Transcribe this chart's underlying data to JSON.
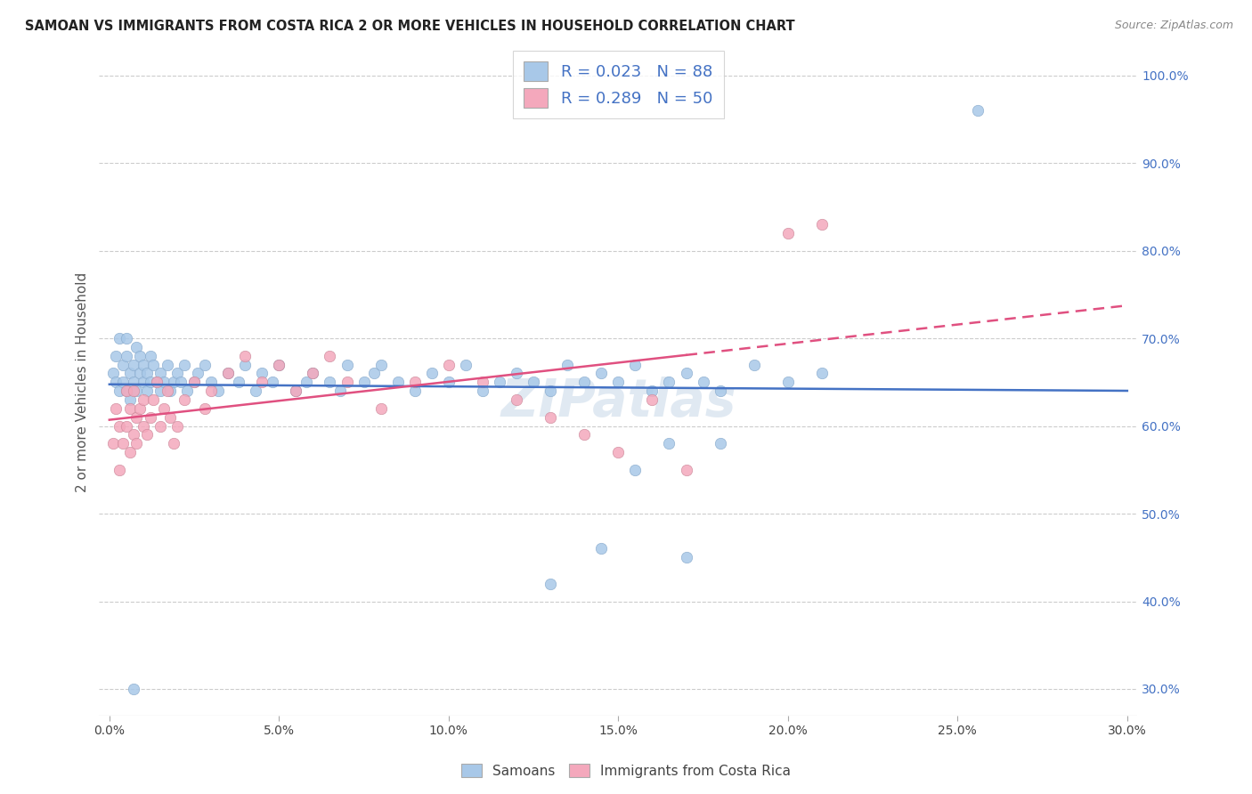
{
  "title": "SAMOAN VS IMMIGRANTS FROM COSTA RICA 2 OR MORE VEHICLES IN HOUSEHOLD CORRELATION CHART",
  "source": "Source: ZipAtlas.com",
  "ylabel": "2 or more Vehicles in Household",
  "legend_labels": [
    "Samoans",
    "Immigrants from Costa Rica"
  ],
  "R_samoans": 0.023,
  "N_samoans": 88,
  "R_costarica": 0.289,
  "N_costarica": 50,
  "samoans_color": "#a8c8e8",
  "costarica_color": "#f4a8bc",
  "samoans_line_color": "#4472c4",
  "costarica_line_color": "#e05080",
  "watermark": "ZIPatlas",
  "xlim": [
    0.0,
    0.3
  ],
  "ylim_low": 0.27,
  "ylim_high": 1.03,
  "ytick_vals": [
    0.3,
    0.4,
    0.5,
    0.6,
    0.7,
    0.8,
    0.9,
    1.0
  ],
  "ytick_labels": [
    "30.0%",
    "40.0%",
    "50.0%",
    "60.0%",
    "70.0%",
    "80.0%",
    "90.0%",
    "100.0%"
  ],
  "xtick_vals": [
    0.0,
    0.05,
    0.1,
    0.15,
    0.2,
    0.25,
    0.3
  ],
  "xtick_labels": [
    "0.0%",
    "5.0%",
    "10.0%",
    "15.0%",
    "20.0%",
    "25.0%",
    "30.0%"
  ],
  "samoans_x": [
    0.001,
    0.002,
    0.002,
    0.003,
    0.003,
    0.004,
    0.004,
    0.005,
    0.005,
    0.005,
    0.006,
    0.006,
    0.007,
    0.007,
    0.008,
    0.008,
    0.009,
    0.009,
    0.01,
    0.01,
    0.011,
    0.011,
    0.012,
    0.012,
    0.013,
    0.014,
    0.015,
    0.015,
    0.016,
    0.017,
    0.018,
    0.019,
    0.02,
    0.021,
    0.022,
    0.023,
    0.025,
    0.026,
    0.028,
    0.03,
    0.032,
    0.035,
    0.038,
    0.04,
    0.043,
    0.045,
    0.048,
    0.05,
    0.055,
    0.058,
    0.06,
    0.065,
    0.068,
    0.07,
    0.075,
    0.078,
    0.08,
    0.085,
    0.09,
    0.095,
    0.1,
    0.105,
    0.11,
    0.115,
    0.12,
    0.125,
    0.13,
    0.135,
    0.14,
    0.145,
    0.15,
    0.155,
    0.16,
    0.165,
    0.17,
    0.175,
    0.18,
    0.19,
    0.2,
    0.21,
    0.13,
    0.007,
    0.256,
    0.145,
    0.155,
    0.165,
    0.17,
    0.18
  ],
  "samoans_y": [
    0.66,
    0.68,
    0.65,
    0.7,
    0.64,
    0.67,
    0.65,
    0.68,
    0.7,
    0.64,
    0.66,
    0.63,
    0.67,
    0.65,
    0.69,
    0.64,
    0.66,
    0.68,
    0.65,
    0.67,
    0.64,
    0.66,
    0.65,
    0.68,
    0.67,
    0.65,
    0.64,
    0.66,
    0.65,
    0.67,
    0.64,
    0.65,
    0.66,
    0.65,
    0.67,
    0.64,
    0.65,
    0.66,
    0.67,
    0.65,
    0.64,
    0.66,
    0.65,
    0.67,
    0.64,
    0.66,
    0.65,
    0.67,
    0.64,
    0.65,
    0.66,
    0.65,
    0.64,
    0.67,
    0.65,
    0.66,
    0.67,
    0.65,
    0.64,
    0.66,
    0.65,
    0.67,
    0.64,
    0.65,
    0.66,
    0.65,
    0.64,
    0.67,
    0.65,
    0.66,
    0.65,
    0.67,
    0.64,
    0.65,
    0.66,
    0.65,
    0.64,
    0.67,
    0.65,
    0.66,
    0.42,
    0.3,
    0.96,
    0.46,
    0.55,
    0.58,
    0.45,
    0.58
  ],
  "costarica_x": [
    0.001,
    0.002,
    0.003,
    0.003,
    0.004,
    0.005,
    0.005,
    0.006,
    0.006,
    0.007,
    0.007,
    0.008,
    0.008,
    0.009,
    0.01,
    0.01,
    0.011,
    0.012,
    0.013,
    0.014,
    0.015,
    0.016,
    0.017,
    0.018,
    0.019,
    0.02,
    0.022,
    0.025,
    0.028,
    0.03,
    0.035,
    0.04,
    0.045,
    0.05,
    0.055,
    0.06,
    0.065,
    0.07,
    0.08,
    0.09,
    0.1,
    0.11,
    0.12,
    0.13,
    0.14,
    0.15,
    0.16,
    0.17,
    0.2,
    0.21
  ],
  "costarica_y": [
    0.58,
    0.62,
    0.55,
    0.6,
    0.58,
    0.6,
    0.64,
    0.57,
    0.62,
    0.59,
    0.64,
    0.61,
    0.58,
    0.62,
    0.6,
    0.63,
    0.59,
    0.61,
    0.63,
    0.65,
    0.6,
    0.62,
    0.64,
    0.61,
    0.58,
    0.6,
    0.63,
    0.65,
    0.62,
    0.64,
    0.66,
    0.68,
    0.65,
    0.67,
    0.64,
    0.66,
    0.68,
    0.65,
    0.62,
    0.65,
    0.67,
    0.65,
    0.63,
    0.61,
    0.59,
    0.57,
    0.63,
    0.55,
    0.82,
    0.83
  ]
}
